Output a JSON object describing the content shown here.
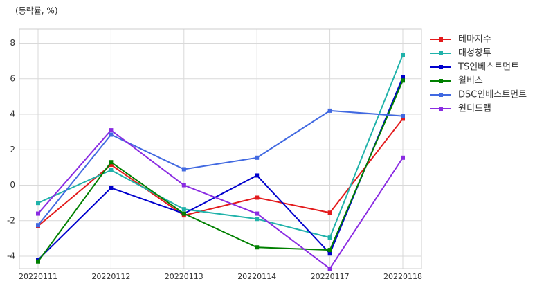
{
  "chart_data": {
    "type": "line",
    "title": "(등락률, %)",
    "categories": [
      "20220111",
      "20220112",
      "20220113",
      "20220114",
      "20220117",
      "20220118"
    ],
    "series": [
      {
        "name": "테마지수",
        "color": "#e31a1c",
        "values": [
          -2.3,
          1.15,
          -1.7,
          -0.7,
          -1.55,
          3.75
        ]
      },
      {
        "name": "대성창투",
        "color": "#20b2aa",
        "values": [
          -1.0,
          0.85,
          -1.35,
          -1.9,
          -2.95,
          7.35
        ]
      },
      {
        "name": "TS인베스트먼트",
        "color": "#0000cd",
        "values": [
          -4.2,
          -0.15,
          -1.6,
          0.55,
          -3.85,
          6.1
        ]
      },
      {
        "name": "윌비스",
        "color": "#008000",
        "values": [
          -4.3,
          1.3,
          -1.6,
          -3.5,
          -3.65,
          5.9
        ]
      },
      {
        "name": "DSC인베스트먼트",
        "color": "#4169e1",
        "values": [
          -2.25,
          2.85,
          0.9,
          1.55,
          4.2,
          3.9
        ]
      },
      {
        "name": "원티드랩",
        "color": "#8a2be2",
        "values": [
          -1.6,
          3.1,
          0.0,
          -1.6,
          -4.7,
          1.55
        ]
      }
    ],
    "ylim": [
      -4.7,
      8.8
    ],
    "yticks": [
      -4,
      -2,
      0,
      2,
      4,
      6,
      8
    ],
    "grid": true,
    "legend": "right"
  }
}
